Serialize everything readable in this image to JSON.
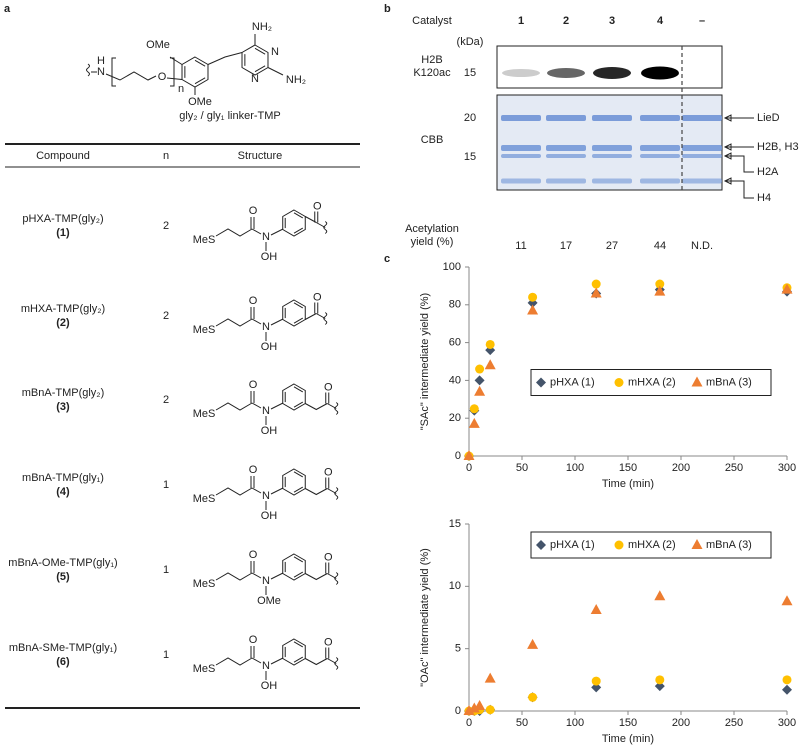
{
  "panel_labels": {
    "a": "a",
    "b": "b",
    "c": "c"
  },
  "panel_a": {
    "linker": {
      "labels": [
        "H",
        "N",
        "O",
        "n",
        "OMe",
        "OMe",
        "NH₂",
        "N",
        "N",
        "NH₂"
      ],
      "caption": "gly₂ / gly₁ linker-TMP"
    },
    "table": {
      "headers": [
        "Compound",
        "n",
        "Structure"
      ],
      "rows": [
        {
          "name": "pHXA-TMP(gly₂)",
          "number": "(1)",
          "n": 2,
          "structure": [
            "MeS",
            "O",
            "N",
            "OH",
            "O"
          ]
        },
        {
          "name": "mHXA-TMP(gly₂)",
          "number": "(2)",
          "n": 2,
          "structure": [
            "MeS",
            "O",
            "N",
            "OH",
            "O"
          ]
        },
        {
          "name": "mBnA-TMP(gly₂)",
          "number": "(3)",
          "n": 2,
          "structure": [
            "MeS",
            "O",
            "N",
            "OH",
            "O"
          ]
        },
        {
          "name": "mBnA-TMP(gly₁)",
          "number": "(4)",
          "n": 1,
          "structure": [
            "MeS",
            "O",
            "N",
            "OH",
            "O"
          ]
        },
        {
          "name": "mBnA-OMe-TMP(gly₁)",
          "number": "(5)",
          "n": 1,
          "structure": [
            "MeS",
            "O",
            "N",
            "OMe",
            "O"
          ]
        },
        {
          "name": "mBnA-SMe-TMP(gly₁)",
          "number": "(6)",
          "n": 1,
          "structure": [
            "MeS",
            "O",
            "N",
            "OH",
            "O"
          ]
        }
      ]
    }
  },
  "panel_b": {
    "catalyst_label": "Catalyst",
    "lanes": [
      "1",
      "2",
      "3",
      "4",
      "–"
    ],
    "kda_label": "(kDa)",
    "blots": [
      {
        "label": [
          "H2B",
          "K120ac"
        ],
        "markers": [
          "15"
        ]
      },
      {
        "label": [
          "CBB"
        ],
        "markers": [
          "20",
          "15"
        ]
      }
    ],
    "bands": [
      "LieD",
      "H2B, H3",
      "H2A",
      "H4"
    ],
    "yield_label": [
      "Acetylation",
      "yield (%)"
    ],
    "yields": [
      11,
      17,
      27,
      44,
      "N.D."
    ]
  },
  "chart_data": [
    {
      "type": "scatter",
      "ylabel": "\"SAc\" intermediate yield (%)",
      "xlabel": "Time (min)",
      "x": [
        0,
        5,
        10,
        20,
        60,
        120,
        180,
        300
      ],
      "xlim": [
        0,
        300
      ],
      "xticks": [
        0,
        50,
        100,
        150,
        200,
        250,
        300
      ],
      "ylim": [
        0,
        100
      ],
      "yticks": [
        0,
        20,
        40,
        60,
        80,
        100
      ],
      "legend": "center right",
      "series": [
        {
          "name": "pHXA (1)",
          "color": "#44546a",
          "marker": "diamond",
          "values": [
            0,
            24,
            40,
            56,
            81,
            86,
            88,
            87
          ]
        },
        {
          "name": "mHXA (2)",
          "color": "#ffc000",
          "marker": "circle",
          "values": [
            0,
            25,
            46,
            59,
            84,
            91,
            91,
            89
          ]
        },
        {
          "name": "mBnA (3)",
          "color": "#ed7d31",
          "marker": "triangle",
          "values": [
            0,
            17,
            34,
            48,
            77,
            86,
            87,
            88
          ]
        }
      ]
    },
    {
      "type": "scatter",
      "ylabel": "\"OAc\" intermediate yield (%)",
      "xlabel": "Time (min)",
      "x": [
        0,
        5,
        10,
        20,
        60,
        120,
        180,
        300
      ],
      "xlim": [
        0,
        300
      ],
      "xticks": [
        0,
        50,
        100,
        150,
        200,
        250,
        300
      ],
      "ylim": [
        0,
        15
      ],
      "yticks": [
        0,
        5,
        10,
        15
      ],
      "legend": "top right",
      "series": [
        {
          "name": "pHXA (1)",
          "color": "#44546a",
          "marker": "diamond",
          "values": [
            0,
            0,
            0,
            0.1,
            1.1,
            1.9,
            2.0,
            1.7
          ]
        },
        {
          "name": "mHXA (2)",
          "color": "#ffc000",
          "marker": "circle",
          "values": [
            0,
            0,
            0.1,
            0.1,
            1.1,
            2.4,
            2.5,
            2.5
          ]
        },
        {
          "name": "mBnA (3)",
          "color": "#ed7d31",
          "marker": "triangle",
          "values": [
            0,
            0.2,
            0.4,
            2.6,
            5.3,
            8.1,
            9.2,
            8.8
          ]
        }
      ]
    }
  ]
}
